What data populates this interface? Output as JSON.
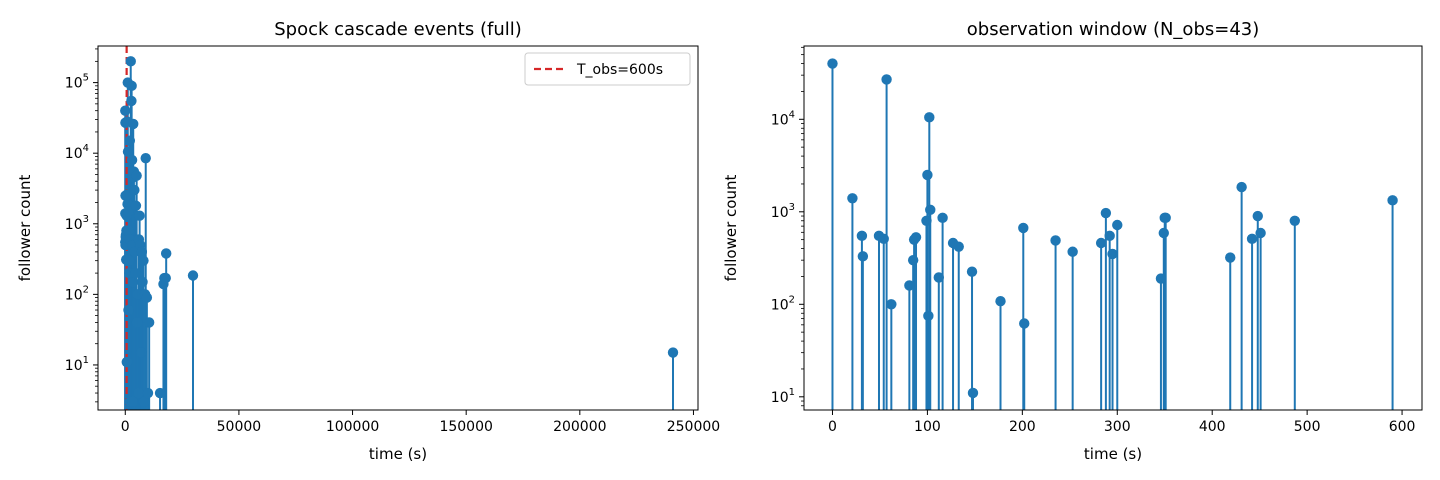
{
  "chart_data": [
    {
      "type": "stem",
      "title": "Spock cascade events (full)",
      "xlabel": "time (s)",
      "ylabel": "follower count",
      "xscale": "linear",
      "yscale": "log",
      "xlim": [
        -12000,
        252000
      ],
      "ylim": [
        2.3,
        330000
      ],
      "xticks": [
        0,
        50000,
        100000,
        150000,
        200000,
        250000
      ],
      "xtick_labels": [
        "0",
        "50000",
        "100000",
        "150000",
        "200000",
        "250000"
      ],
      "yticks": [
        10,
        100,
        1000,
        10000,
        100000
      ],
      "ytick_labels": [
        {
          "base": "10",
          "exp": "1"
        },
        {
          "base": "10",
          "exp": "2"
        },
        {
          "base": "10",
          "exp": "3"
        },
        {
          "base": "10",
          "exp": "4"
        },
        {
          "base": "10",
          "exp": "5"
        }
      ],
      "color": "#1f77b4",
      "vline": {
        "x": 600,
        "label": "T_obs=600s",
        "color": "#d62728",
        "style": "dashed"
      },
      "legend": {
        "position": "top-right",
        "entries": [
          "T_obs=600s"
        ]
      },
      "x": [
        0,
        20,
        30,
        50,
        57,
        85,
        100,
        200,
        300,
        400,
        500,
        600,
        650,
        800,
        900,
        1000,
        1100,
        1200,
        1300,
        1400,
        1500,
        1600,
        1800,
        2000,
        2100,
        2200,
        2400,
        2500,
        2700,
        2800,
        3000,
        3100,
        3200,
        3300,
        3500,
        3600,
        3800,
        4000,
        4200,
        4500,
        4700,
        5000,
        5200,
        5500,
        5800,
        6000,
        6300,
        6600,
        7000,
        7300,
        7600,
        8000,
        8300,
        8700,
        9000,
        9500,
        10000,
        10500,
        15300,
        16800,
        17200,
        17800,
        18000,
        29800,
        241000
      ],
      "y": [
        40000,
        1400,
        550,
        550,
        27000,
        500,
        2500,
        650,
        700,
        310,
        800,
        1300,
        11,
        28000,
        2600,
        1900,
        100000,
        10500,
        800,
        60,
        1500,
        300,
        200,
        15000,
        600,
        3,
        200000,
        3,
        55000,
        90000,
        8000,
        500,
        4500,
        3,
        26000,
        150,
        5500,
        3000,
        400,
        200,
        1800,
        4800,
        40,
        100,
        4,
        600,
        1300,
        500,
        15,
        400,
        150,
        300,
        3,
        100,
        8500,
        90,
        4,
        40,
        4,
        140,
        170,
        170,
        380,
        185,
        15
      ]
    },
    {
      "type": "stem",
      "title": "observation window (N_obs=43)",
      "xlabel": "time (s)",
      "ylabel": "follower count",
      "xscale": "linear",
      "yscale": "log",
      "xlim": [
        -30,
        621
      ],
      "ylim": [
        7.2,
        62000
      ],
      "xticks": [
        0,
        100,
        200,
        300,
        400,
        500,
        600
      ],
      "xtick_labels": [
        "0",
        "100",
        "200",
        "300",
        "400",
        "500",
        "600"
      ],
      "yticks": [
        10,
        100,
        1000,
        10000
      ],
      "ytick_labels": [
        {
          "base": "10",
          "exp": "1"
        },
        {
          "base": "10",
          "exp": "2"
        },
        {
          "base": "10",
          "exp": "3"
        },
        {
          "base": "10",
          "exp": "4"
        }
      ],
      "color": "#1f77b4",
      "x": [
        0,
        21,
        31,
        32,
        49,
        54,
        57,
        62,
        81,
        85,
        86,
        88,
        99,
        100,
        101,
        102,
        103,
        112,
        116,
        127,
        133,
        147,
        148,
        177,
        201,
        202,
        235,
        253,
        283,
        288,
        292,
        295,
        300,
        346,
        349,
        350,
        351,
        419,
        431,
        442,
        448,
        451,
        487,
        590
      ],
      "y": [
        40000,
        1400,
        550,
        330,
        550,
        510,
        27000,
        100,
        160,
        300,
        500,
        530,
        800,
        2500,
        75,
        10500,
        1050,
        195,
        860,
        460,
        420,
        225,
        11,
        108,
        670,
        62,
        490,
        370,
        460,
        970,
        550,
        350,
        720,
        190,
        590,
        860,
        860,
        320,
        1850,
        510,
        900,
        590,
        800,
        1330
      ]
    }
  ]
}
